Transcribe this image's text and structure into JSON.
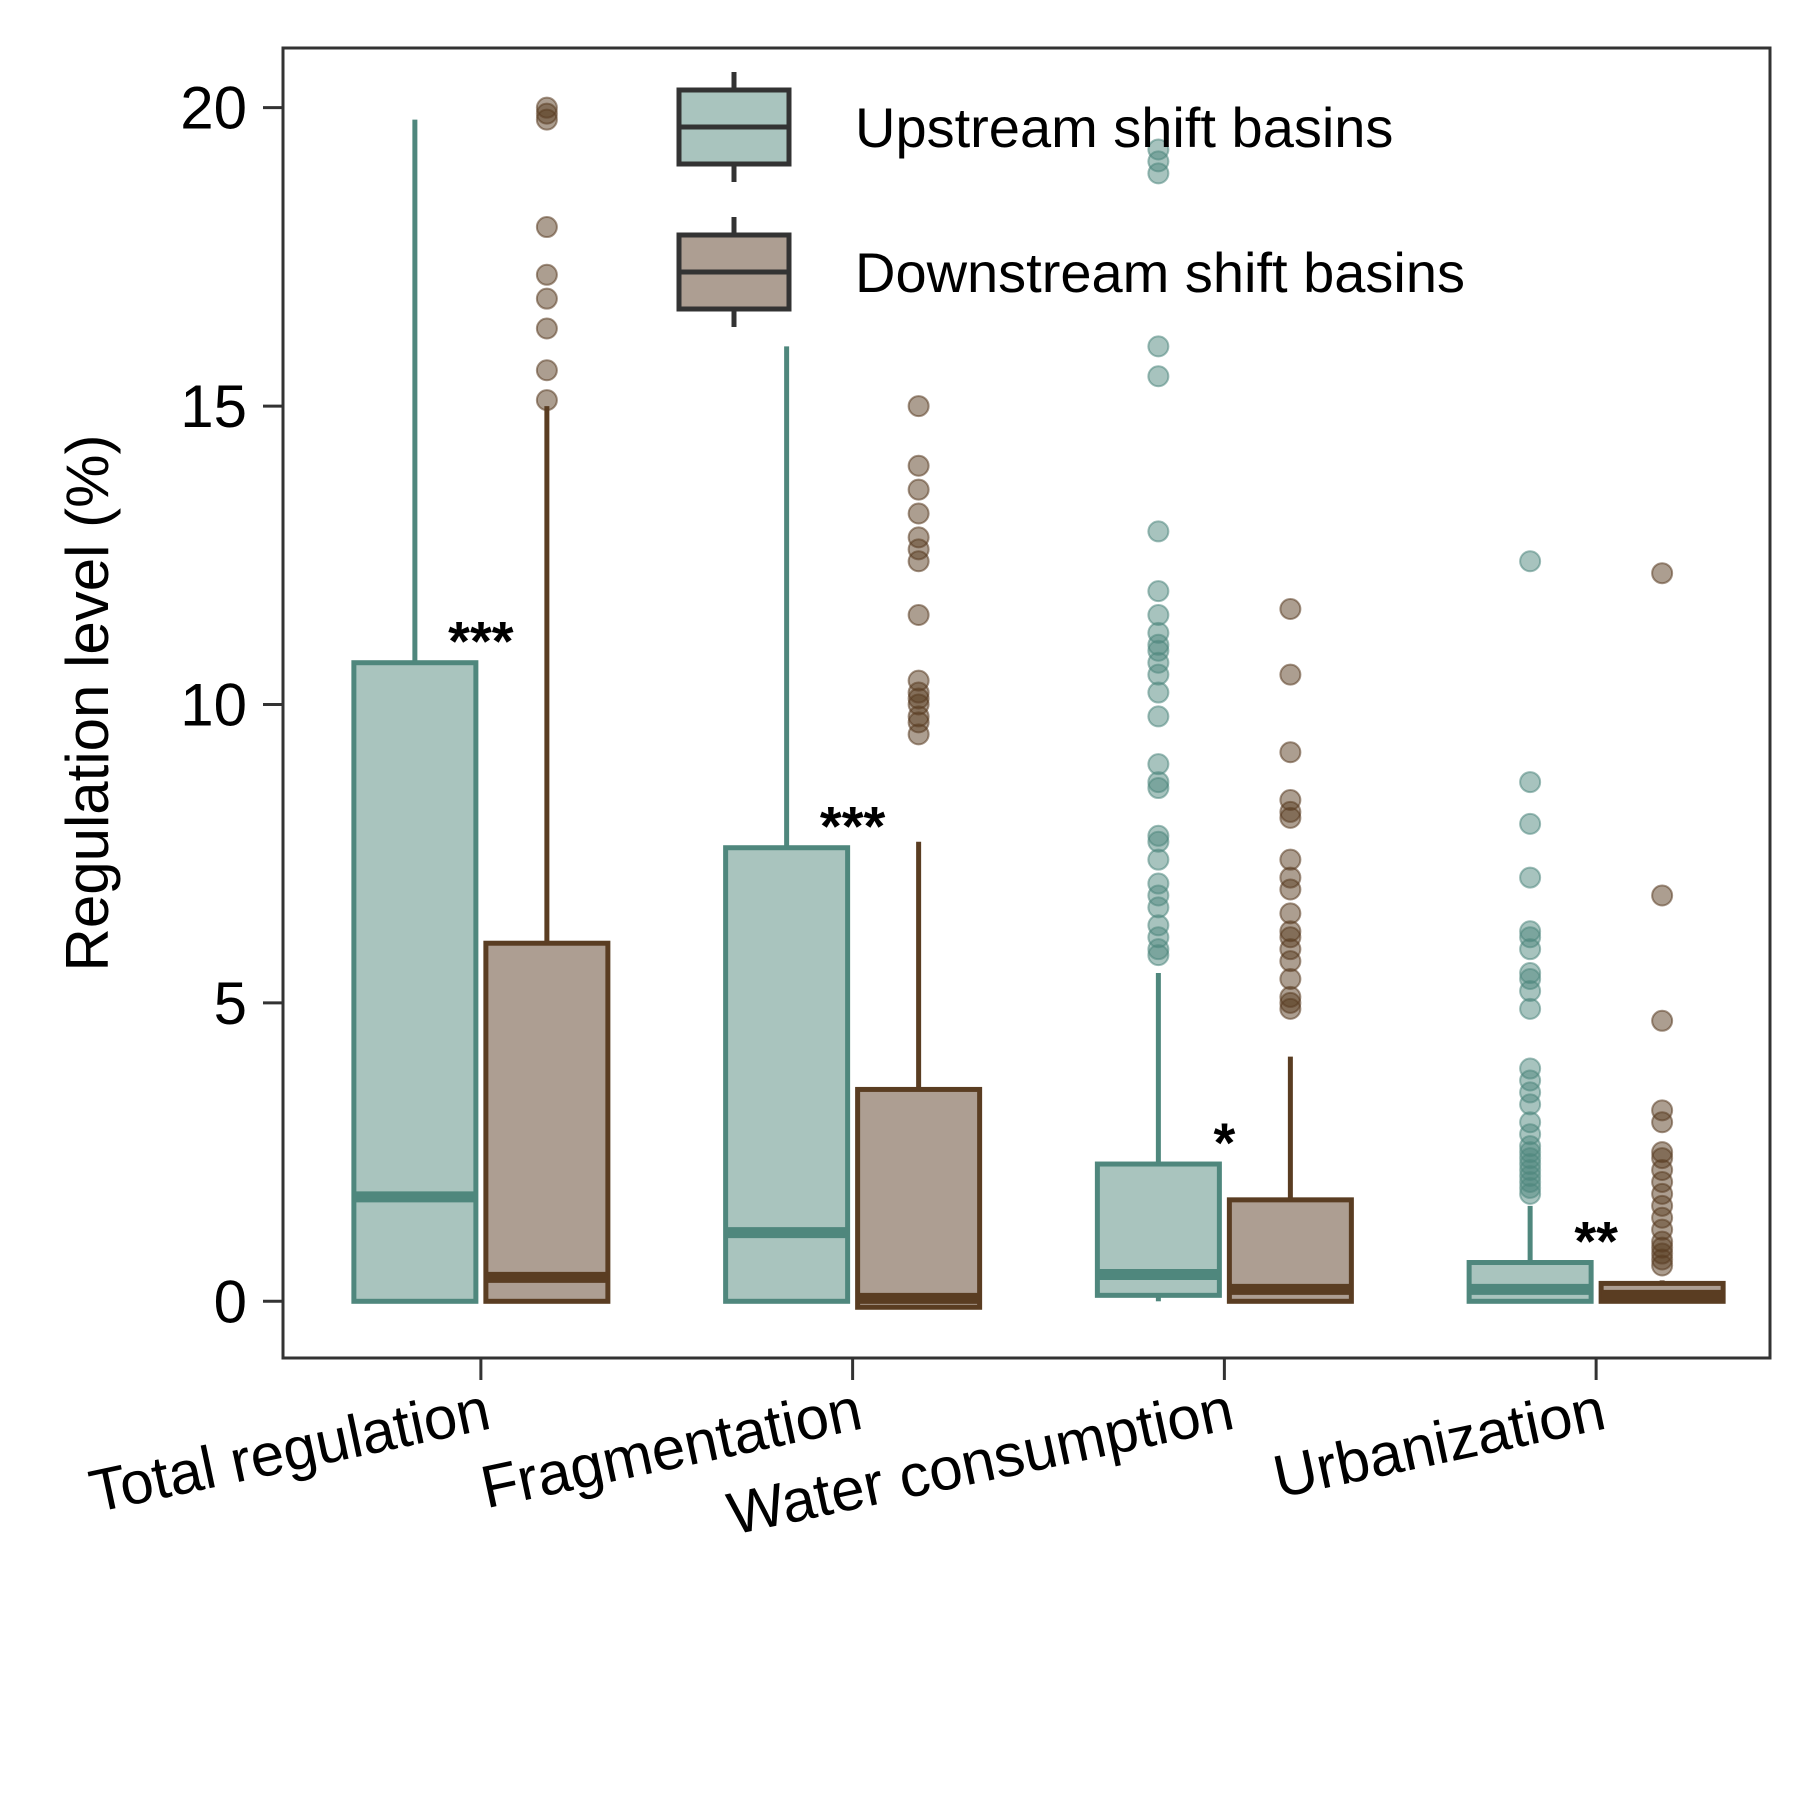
{
  "chart_data": {
    "type": "boxplot",
    "ylabel": "Regulation level (%)",
    "xlabel": "",
    "ylim": [
      -0.95,
      21
    ],
    "yticks": [
      "0",
      "5",
      "10",
      "15",
      "20"
    ],
    "categories": [
      "Total regulation",
      "Fragmentation",
      "Water consumption",
      "Urbanization"
    ],
    "legend": {
      "position": "top-right",
      "entries": [
        "Upstream shift basins",
        "Downstream shift basins"
      ]
    },
    "significance": [
      "***",
      "***",
      "*",
      "**"
    ],
    "grid": false,
    "series": [
      {
        "name": "Upstream shift basins",
        "fill": "#a9c4be",
        "stroke": "#4f877d",
        "boxes": [
          {
            "min": 0,
            "q1": 0,
            "median": 1.75,
            "q3": 10.7,
            "max": 19.8,
            "outliers": []
          },
          {
            "min": 0,
            "q1": 0,
            "median": 1.15,
            "q3": 7.6,
            "max": 16.0,
            "outliers": []
          },
          {
            "min": 0,
            "q1": 0.1,
            "median": 0.45,
            "q3": 2.3,
            "max": 5.5,
            "outliers": [
              5.8,
              5.9,
              6.1,
              6.3,
              6.6,
              6.8,
              7.0,
              7.4,
              7.7,
              7.8,
              8.6,
              8.7,
              9.0,
              9.8,
              10.2,
              10.5,
              10.7,
              10.9,
              11.0,
              11.2,
              11.5,
              11.9,
              12.9,
              15.5,
              16.0,
              18.9,
              19.1,
              19.3
            ]
          },
          {
            "min": 0,
            "q1": 0,
            "median": 0.2,
            "q3": 0.65,
            "max": 1.6,
            "outliers": [
              1.8,
              1.9,
              2.0,
              2.1,
              2.2,
              2.3,
              2.4,
              2.5,
              2.6,
              2.8,
              3.0,
              3.3,
              3.5,
              3.7,
              3.9,
              4.9,
              5.2,
              5.4,
              5.5,
              5.9,
              6.1,
              6.2,
              7.1,
              8.0,
              8.7,
              12.4
            ]
          }
        ]
      },
      {
        "name": "Downstream shift basins",
        "fill": "#ad9e92",
        "stroke": "#5a3d22",
        "boxes": [
          {
            "min": 0,
            "q1": 0,
            "median": 0.4,
            "q3": 6.0,
            "max": 15.0,
            "outliers": [
              15.1,
              15.6,
              16.3,
              16.8,
              17.2,
              18.0,
              19.8,
              19.9,
              20.0
            ]
          },
          {
            "min": -0.1,
            "q1": -0.1,
            "median": 0.05,
            "q3": 3.55,
            "max": 7.7,
            "outliers": [
              9.5,
              9.7,
              9.8,
              10.0,
              10.1,
              10.2,
              10.4,
              11.5,
              12.4,
              12.6,
              12.8,
              13.2,
              13.6,
              14.0,
              15.0
            ]
          },
          {
            "min": 0,
            "q1": 0,
            "median": 0.2,
            "q3": 1.7,
            "max": 4.1,
            "outliers": [
              4.9,
              5.0,
              5.1,
              5.4,
              5.7,
              5.9,
              6.1,
              6.2,
              6.5,
              6.9,
              7.1,
              7.4,
              8.1,
              8.2,
              8.4,
              9.2,
              10.5,
              11.6
            ]
          },
          {
            "min": 0,
            "q1": 0,
            "median": 0.1,
            "q3": 0.3,
            "max": 0.35,
            "outliers": [
              0.6,
              0.7,
              0.8,
              0.9,
              1.0,
              1.2,
              1.4,
              1.6,
              1.8,
              2.0,
              2.2,
              2.4,
              2.5,
              3.0,
              3.2,
              4.7,
              6.8,
              12.2
            ]
          }
        ]
      }
    ]
  }
}
